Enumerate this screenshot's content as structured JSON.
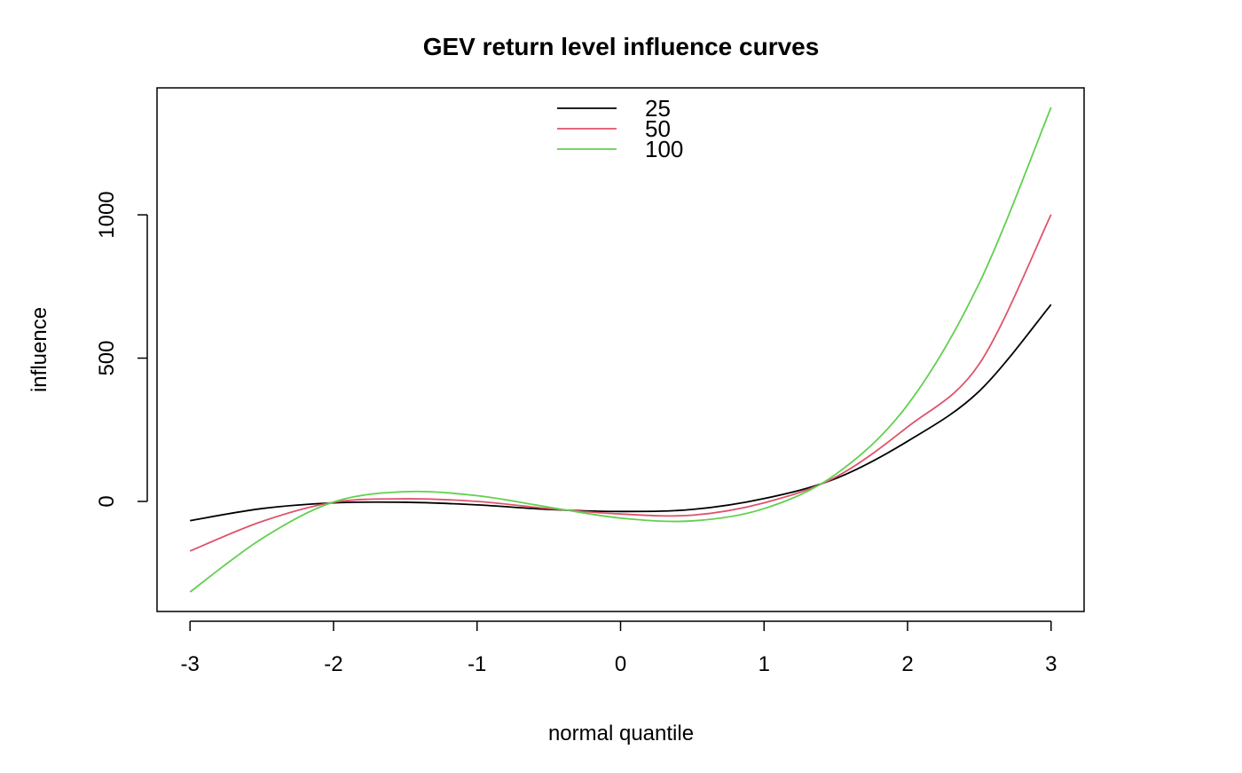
{
  "chart_data": {
    "type": "line",
    "title": "GEV return level influence curves",
    "xlabel": "normal quantile",
    "ylabel": "influence",
    "xlim": [
      -3.23,
      3.23
    ],
    "ylim": [
      -384,
      1443
    ],
    "xticks": [
      -3,
      -2,
      -1,
      0,
      1,
      2,
      3
    ],
    "xtick_labels": [
      "-3",
      "-2",
      "-1",
      "0",
      "1",
      "2",
      "3"
    ],
    "yticks": [
      0,
      500,
      1000
    ],
    "ytick_labels": [
      "0",
      "500",
      "1000"
    ],
    "grid": false,
    "legend_position": "top",
    "x": [
      -3,
      -2.5,
      -2,
      -1.5,
      -1,
      -0.5,
      0,
      0.5,
      1,
      1.5,
      2,
      2.5,
      3
    ],
    "series": [
      {
        "name": "25",
        "color": "#000000",
        "values": [
          -67,
          -25,
          -5,
          -3,
          -12,
          -28,
          -35,
          -28,
          10,
          80,
          210,
          385,
          687
        ]
      },
      {
        "name": "50",
        "color": "#DF536B",
        "values": [
          -173,
          -70,
          -3,
          9,
          0,
          -25,
          -44,
          -48,
          -5,
          85,
          260,
          480,
          1001
        ]
      },
      {
        "name": "100",
        "color": "#61D04F",
        "values": [
          -316,
          -130,
          -2,
          34,
          20,
          -20,
          -58,
          -68,
          -25,
          95,
          337,
          762,
          1375
        ]
      }
    ]
  }
}
